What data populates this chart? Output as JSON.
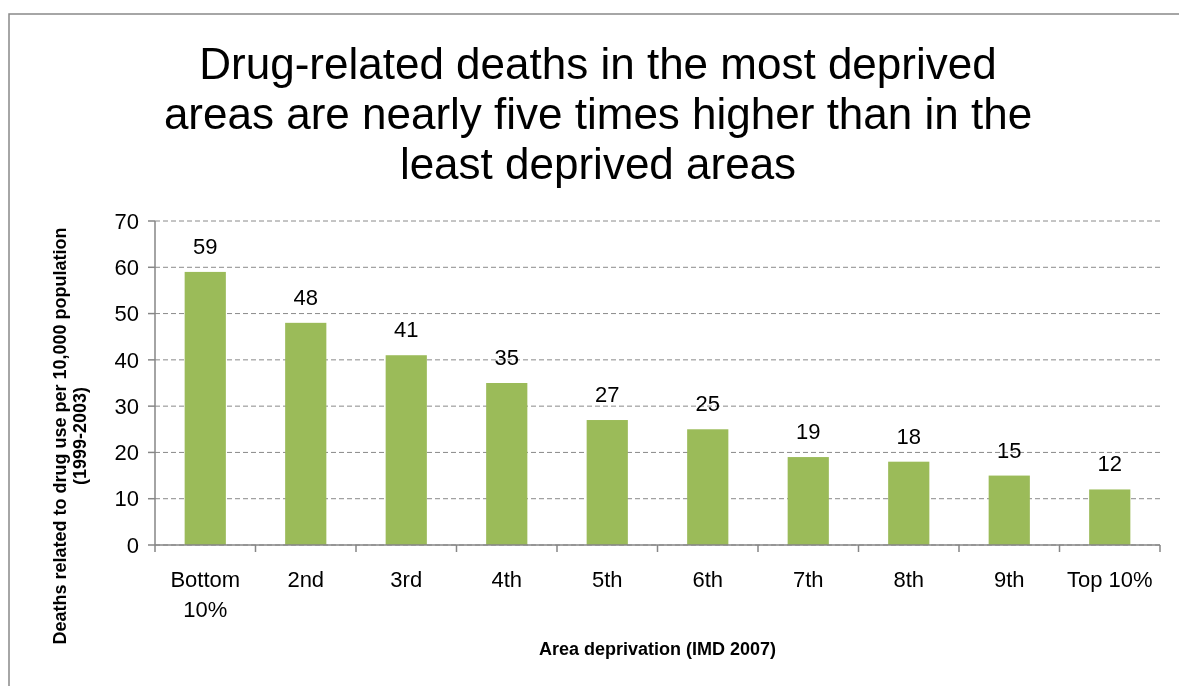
{
  "chart_data": {
    "type": "bar",
    "title": "Drug-related deaths in the most deprived areas are nearly five times higher than in the least deprived areas",
    "xlabel": "Area deprivation (IMD 2007)",
    "ylabel": "Deaths related to drug use per 10,000 population (1999-2003)",
    "categories": [
      "Bottom 10%",
      "2nd",
      "3rd",
      "4th",
      "5th",
      "6th",
      "7th",
      "8th",
      "9th",
      "Top 10%"
    ],
    "values": [
      59,
      48,
      41,
      35,
      27,
      25,
      19,
      18,
      15,
      12
    ],
    "color": "#9bbb59",
    "ylim": [
      0,
      70
    ],
    "yticks": [
      0,
      10,
      20,
      30,
      40,
      50,
      60,
      70
    ],
    "grid": "y",
    "data_labels": true
  }
}
